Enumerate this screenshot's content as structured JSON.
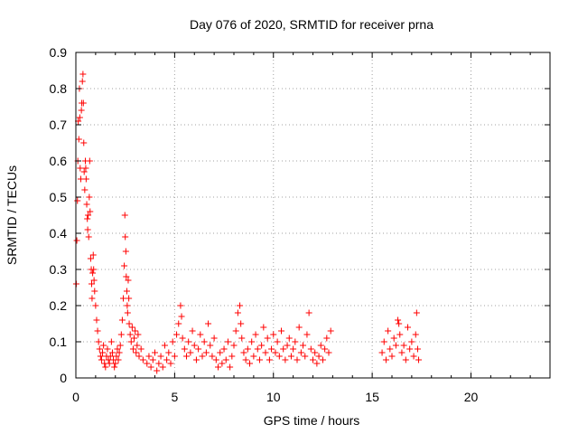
{
  "chart_data": {
    "type": "scatter",
    "title": "Day 076 of 2020, SRMTID for receiver prna",
    "xlabel": "GPS time / hours",
    "ylabel": "SRMTID / TECUs",
    "xlim": [
      0,
      24
    ],
    "ylim": [
      0,
      0.9
    ],
    "xticks": [
      "0",
      "5",
      "10",
      "15",
      "20"
    ],
    "yticks": [
      "0",
      "0.1",
      "0.2",
      "0.3",
      "0.4",
      "0.5",
      "0.6",
      "0.7",
      "0.8",
      "0.9"
    ],
    "grid": true,
    "marker": "+",
    "color": "#ff0000",
    "series": [
      {
        "points": [
          [
            0.02,
            0.26
          ],
          [
            0.05,
            0.38
          ],
          [
            0.08,
            0.49
          ],
          [
            0.1,
            0.6
          ],
          [
            0.12,
            0.71
          ],
          [
            0.15,
            0.66
          ],
          [
            0.18,
            0.8
          ],
          [
            0.2,
            0.72
          ],
          [
            0.22,
            0.58
          ],
          [
            0.25,
            0.55
          ],
          [
            0.28,
            0.74
          ],
          [
            0.3,
            0.76
          ],
          [
            0.33,
            0.82
          ],
          [
            0.36,
            0.84
          ],
          [
            0.38,
            0.76
          ],
          [
            0.4,
            0.65
          ],
          [
            0.42,
            0.57
          ],
          [
            0.45,
            0.52
          ],
          [
            0.48,
            0.6
          ],
          [
            0.5,
            0.58
          ],
          [
            0.52,
            0.55
          ],
          [
            0.55,
            0.48
          ],
          [
            0.58,
            0.44
          ],
          [
            0.6,
            0.41
          ],
          [
            0.62,
            0.45
          ],
          [
            0.65,
            0.39
          ],
          [
            0.68,
            0.5
          ],
          [
            0.7,
            0.6
          ],
          [
            0.72,
            0.46
          ],
          [
            0.75,
            0.33
          ],
          [
            0.78,
            0.3
          ],
          [
            0.8,
            0.26
          ],
          [
            0.82,
            0.22
          ],
          [
            0.85,
            0.29
          ],
          [
            0.88,
            0.34
          ],
          [
            0.9,
            0.3
          ],
          [
            0.92,
            0.27
          ],
          [
            0.95,
            0.24
          ],
          [
            1.0,
            0.2
          ],
          [
            1.05,
            0.16
          ],
          [
            1.1,
            0.13
          ],
          [
            1.15,
            0.1
          ],
          [
            1.2,
            0.08
          ],
          [
            1.25,
            0.06
          ],
          [
            1.3,
            0.05
          ],
          [
            1.35,
            0.07
          ],
          [
            1.4,
            0.09
          ],
          [
            1.45,
            0.04
          ],
          [
            1.5,
            0.03
          ],
          [
            1.55,
            0.06
          ],
          [
            1.6,
            0.08
          ],
          [
            1.65,
            0.05
          ],
          [
            1.7,
            0.04
          ],
          [
            1.75,
            0.06
          ],
          [
            1.8,
            0.1
          ],
          [
            1.85,
            0.07
          ],
          [
            1.9,
            0.05
          ],
          [
            1.95,
            0.03
          ],
          [
            2.0,
            0.04
          ],
          [
            2.05,
            0.06
          ],
          [
            2.1,
            0.08
          ],
          [
            2.15,
            0.05
          ],
          [
            2.2,
            0.07
          ],
          [
            2.25,
            0.09
          ],
          [
            2.3,
            0.12
          ],
          [
            2.35,
            0.16
          ],
          [
            2.4,
            0.22
          ],
          [
            2.45,
            0.31
          ],
          [
            2.48,
            0.45
          ],
          [
            2.5,
            0.39
          ],
          [
            2.53,
            0.35
          ],
          [
            2.55,
            0.28
          ],
          [
            2.58,
            0.24
          ],
          [
            2.6,
            0.2
          ],
          [
            2.62,
            0.18
          ],
          [
            2.65,
            0.27
          ],
          [
            2.68,
            0.22
          ],
          [
            2.7,
            0.15
          ],
          [
            2.75,
            0.12
          ],
          [
            2.8,
            0.1
          ],
          [
            2.85,
            0.14
          ],
          [
            2.9,
            0.08
          ],
          [
            2.95,
            0.11
          ],
          [
            3.0,
            0.13
          ],
          [
            3.05,
            0.07
          ],
          [
            3.1,
            0.09
          ],
          [
            3.15,
            0.12
          ],
          [
            3.2,
            0.06
          ],
          [
            3.3,
            0.08
          ],
          [
            3.4,
            0.05
          ],
          [
            3.6,
            0.04
          ],
          [
            3.7,
            0.06
          ],
          [
            3.8,
            0.03
          ],
          [
            3.9,
            0.05
          ],
          [
            4.0,
            0.07
          ],
          [
            4.1,
            0.02
          ],
          [
            4.2,
            0.04
          ],
          [
            4.3,
            0.06
          ],
          [
            4.4,
            0.03
          ],
          [
            4.5,
            0.09
          ],
          [
            4.6,
            0.05
          ],
          [
            4.7,
            0.07
          ],
          [
            4.8,
            0.04
          ],
          [
            4.9,
            0.1
          ],
          [
            5.0,
            0.06
          ],
          [
            5.1,
            0.12
          ],
          [
            5.2,
            0.15
          ],
          [
            5.3,
            0.2
          ],
          [
            5.35,
            0.17
          ],
          [
            5.4,
            0.11
          ],
          [
            5.5,
            0.08
          ],
          [
            5.6,
            0.06
          ],
          [
            5.7,
            0.1
          ],
          [
            5.8,
            0.07
          ],
          [
            5.9,
            0.13
          ],
          [
            6.0,
            0.09
          ],
          [
            6.1,
            0.05
          ],
          [
            6.2,
            0.08
          ],
          [
            6.3,
            0.12
          ],
          [
            6.4,
            0.06
          ],
          [
            6.5,
            0.1
          ],
          [
            6.6,
            0.07
          ],
          [
            6.7,
            0.15
          ],
          [
            6.8,
            0.09
          ],
          [
            6.9,
            0.06
          ],
          [
            7.0,
            0.11
          ],
          [
            7.1,
            0.05
          ],
          [
            7.2,
            0.03
          ],
          [
            7.3,
            0.07
          ],
          [
            7.4,
            0.04
          ],
          [
            7.5,
            0.08
          ],
          [
            7.6,
            0.05
          ],
          [
            7.7,
            0.1
          ],
          [
            7.8,
            0.03
          ],
          [
            7.9,
            0.06
          ],
          [
            8.0,
            0.09
          ],
          [
            8.1,
            0.13
          ],
          [
            8.2,
            0.18
          ],
          [
            8.3,
            0.2
          ],
          [
            8.35,
            0.15
          ],
          [
            8.4,
            0.11
          ],
          [
            8.5,
            0.07
          ],
          [
            8.6,
            0.05
          ],
          [
            8.7,
            0.08
          ],
          [
            8.8,
            0.04
          ],
          [
            8.9,
            0.1
          ],
          [
            9.0,
            0.06
          ],
          [
            9.1,
            0.12
          ],
          [
            9.2,
            0.08
          ],
          [
            9.3,
            0.05
          ],
          [
            9.4,
            0.09
          ],
          [
            9.5,
            0.14
          ],
          [
            9.6,
            0.07
          ],
          [
            9.7,
            0.11
          ],
          [
            9.8,
            0.05
          ],
          [
            9.9,
            0.08
          ],
          [
            10.0,
            0.12
          ],
          [
            10.1,
            0.07
          ],
          [
            10.2,
            0.1
          ],
          [
            10.3,
            0.06
          ],
          [
            10.4,
            0.13
          ],
          [
            10.5,
            0.08
          ],
          [
            10.6,
            0.05
          ],
          [
            10.7,
            0.09
          ],
          [
            10.8,
            0.11
          ],
          [
            10.9,
            0.06
          ],
          [
            11.0,
            0.08
          ],
          [
            11.1,
            0.1
          ],
          [
            11.2,
            0.05
          ],
          [
            11.3,
            0.14
          ],
          [
            11.4,
            0.07
          ],
          [
            11.5,
            0.09
          ],
          [
            11.6,
            0.06
          ],
          [
            11.7,
            0.12
          ],
          [
            11.8,
            0.18
          ],
          [
            11.9,
            0.08
          ],
          [
            12.0,
            0.05
          ],
          [
            12.1,
            0.07
          ],
          [
            12.2,
            0.04
          ],
          [
            12.3,
            0.06
          ],
          [
            12.4,
            0.09
          ],
          [
            12.5,
            0.05
          ],
          [
            12.6,
            0.08
          ],
          [
            12.7,
            0.11
          ],
          [
            12.8,
            0.07
          ],
          [
            12.9,
            0.13
          ],
          [
            15.5,
            0.07
          ],
          [
            15.6,
            0.1
          ],
          [
            15.7,
            0.05
          ],
          [
            15.8,
            0.13
          ],
          [
            15.9,
            0.08
          ],
          [
            16.0,
            0.06
          ],
          [
            16.1,
            0.11
          ],
          [
            16.2,
            0.09
          ],
          [
            16.3,
            0.16
          ],
          [
            16.35,
            0.15
          ],
          [
            16.4,
            0.12
          ],
          [
            16.5,
            0.07
          ],
          [
            16.6,
            0.09
          ],
          [
            16.7,
            0.05
          ],
          [
            16.8,
            0.14
          ],
          [
            16.9,
            0.08
          ],
          [
            17.0,
            0.1
          ],
          [
            17.1,
            0.06
          ],
          [
            17.2,
            0.12
          ],
          [
            17.25,
            0.18
          ],
          [
            17.3,
            0.08
          ],
          [
            17.35,
            0.05
          ]
        ]
      }
    ]
  }
}
